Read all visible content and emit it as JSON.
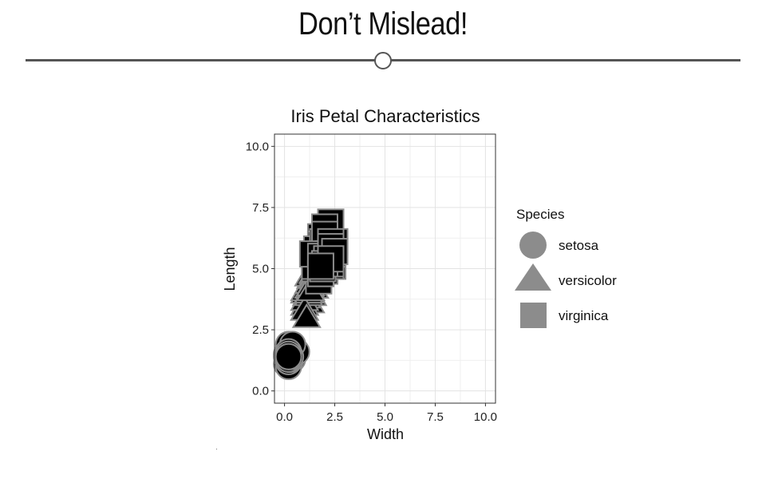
{
  "slide": {
    "title": "Don’t Mislead!"
  },
  "chart_data": {
    "type": "scatter",
    "title": "Iris Petal Characteristics",
    "xlabel": "Width",
    "ylabel": "Length",
    "xlim": [
      -0.5,
      10.5
    ],
    "ylim": [
      -0.5,
      10.5
    ],
    "xticks": [
      0.0,
      2.5,
      5.0,
      7.5,
      10.0
    ],
    "xtick_labels": [
      "0.0",
      "2.5",
      "5.0",
      "7.5",
      "10.0"
    ],
    "yticks": [
      0.0,
      2.5,
      5.0,
      7.5,
      10.0
    ],
    "ytick_labels": [
      "0.0",
      "2.5",
      "5.0",
      "7.5",
      "10.0"
    ],
    "grid": true,
    "legend": {
      "title": "Species",
      "position": "right"
    },
    "series": [
      {
        "name": "setosa",
        "shape": "circle",
        "points": [
          [
            0.2,
            1.4
          ],
          [
            0.2,
            1.4
          ],
          [
            0.2,
            1.3
          ],
          [
            0.2,
            1.5
          ],
          [
            0.2,
            1.4
          ],
          [
            0.4,
            1.7
          ],
          [
            0.3,
            1.4
          ],
          [
            0.2,
            1.5
          ],
          [
            0.2,
            1.4
          ],
          [
            0.1,
            1.5
          ],
          [
            0.2,
            1.5
          ],
          [
            0.2,
            1.6
          ],
          [
            0.1,
            1.4
          ],
          [
            0.1,
            1.1
          ],
          [
            0.2,
            1.2
          ],
          [
            0.4,
            1.5
          ],
          [
            0.4,
            1.3
          ],
          [
            0.3,
            1.4
          ],
          [
            0.3,
            1.7
          ],
          [
            0.3,
            1.5
          ],
          [
            0.2,
            1.7
          ],
          [
            0.4,
            1.5
          ],
          [
            0.2,
            1.0
          ],
          [
            0.5,
            1.7
          ],
          [
            0.2,
            1.9
          ],
          [
            0.2,
            1.6
          ],
          [
            0.4,
            1.6
          ],
          [
            0.2,
            1.5
          ],
          [
            0.2,
            1.4
          ],
          [
            0.2,
            1.6
          ],
          [
            0.2,
            1.6
          ],
          [
            0.4,
            1.5
          ],
          [
            0.1,
            1.5
          ],
          [
            0.2,
            1.4
          ],
          [
            0.2,
            1.5
          ],
          [
            0.2,
            1.2
          ],
          [
            0.2,
            1.3
          ],
          [
            0.1,
            1.4
          ],
          [
            0.2,
            1.3
          ],
          [
            0.2,
            1.5
          ],
          [
            0.3,
            1.3
          ],
          [
            0.3,
            1.3
          ],
          [
            0.2,
            1.3
          ],
          [
            0.6,
            1.6
          ],
          [
            0.4,
            1.9
          ],
          [
            0.3,
            1.4
          ],
          [
            0.2,
            1.6
          ],
          [
            0.2,
            1.4
          ],
          [
            0.2,
            1.5
          ],
          [
            0.2,
            1.4
          ]
        ]
      },
      {
        "name": "versicolor",
        "shape": "triangle",
        "points": [
          [
            1.4,
            4.7
          ],
          [
            1.5,
            4.5
          ],
          [
            1.5,
            4.9
          ],
          [
            1.3,
            4.0
          ],
          [
            1.5,
            4.6
          ],
          [
            1.3,
            4.5
          ],
          [
            1.6,
            4.7
          ],
          [
            1.0,
            3.3
          ],
          [
            1.3,
            4.6
          ],
          [
            1.4,
            3.9
          ],
          [
            1.0,
            3.5
          ],
          [
            1.5,
            4.2
          ],
          [
            1.0,
            4.0
          ],
          [
            1.4,
            4.7
          ],
          [
            1.3,
            3.6
          ],
          [
            1.4,
            4.4
          ],
          [
            1.5,
            4.5
          ],
          [
            1.0,
            4.1
          ],
          [
            1.5,
            4.5
          ],
          [
            1.1,
            3.9
          ],
          [
            1.8,
            4.8
          ],
          [
            1.3,
            4.0
          ],
          [
            1.5,
            4.9
          ],
          [
            1.2,
            4.7
          ],
          [
            1.3,
            4.3
          ],
          [
            1.4,
            4.4
          ],
          [
            1.4,
            4.8
          ],
          [
            1.7,
            5.0
          ],
          [
            1.5,
            4.5
          ],
          [
            1.0,
            3.5
          ],
          [
            1.1,
            3.8
          ],
          [
            1.0,
            3.7
          ],
          [
            1.2,
            3.9
          ],
          [
            1.6,
            5.1
          ],
          [
            1.5,
            4.5
          ],
          [
            1.6,
            4.5
          ],
          [
            1.5,
            4.7
          ],
          [
            1.3,
            4.4
          ],
          [
            1.3,
            4.1
          ],
          [
            1.3,
            4.0
          ],
          [
            1.2,
            4.4
          ],
          [
            1.4,
            4.6
          ],
          [
            1.2,
            4.0
          ],
          [
            1.0,
            3.3
          ],
          [
            1.3,
            4.2
          ],
          [
            1.2,
            4.2
          ],
          [
            1.3,
            4.2
          ],
          [
            1.3,
            4.3
          ],
          [
            1.1,
            3.0
          ],
          [
            1.3,
            4.1
          ]
        ]
      },
      {
        "name": "virginica",
        "shape": "square",
        "points": [
          [
            2.5,
            6.0
          ],
          [
            1.9,
            5.1
          ],
          [
            2.1,
            5.9
          ],
          [
            1.8,
            5.6
          ],
          [
            2.2,
            5.8
          ],
          [
            2.1,
            6.6
          ],
          [
            1.7,
            4.5
          ],
          [
            1.8,
            6.3
          ],
          [
            1.8,
            5.8
          ],
          [
            2.5,
            6.1
          ],
          [
            2.0,
            5.1
          ],
          [
            1.9,
            5.3
          ],
          [
            2.1,
            5.5
          ],
          [
            2.0,
            5.0
          ],
          [
            2.4,
            5.1
          ],
          [
            2.3,
            5.3
          ],
          [
            1.8,
            5.5
          ],
          [
            2.2,
            6.7
          ],
          [
            2.3,
            6.9
          ],
          [
            1.5,
            5.0
          ],
          [
            2.3,
            5.7
          ],
          [
            2.0,
            4.9
          ],
          [
            2.0,
            6.7
          ],
          [
            1.8,
            4.9
          ],
          [
            2.1,
            5.7
          ],
          [
            1.8,
            6.0
          ],
          [
            1.8,
            4.8
          ],
          [
            1.8,
            4.9
          ],
          [
            2.1,
            5.6
          ],
          [
            1.6,
            5.8
          ],
          [
            1.9,
            6.1
          ],
          [
            2.0,
            6.4
          ],
          [
            2.2,
            5.6
          ],
          [
            1.5,
            5.1
          ],
          [
            1.4,
            5.6
          ],
          [
            2.3,
            6.1
          ],
          [
            2.4,
            5.6
          ],
          [
            1.8,
            5.5
          ],
          [
            1.8,
            4.8
          ],
          [
            2.1,
            5.4
          ],
          [
            2.4,
            5.6
          ],
          [
            2.3,
            5.1
          ],
          [
            1.9,
            5.1
          ],
          [
            2.3,
            5.9
          ],
          [
            2.5,
            5.7
          ],
          [
            2.3,
            5.2
          ],
          [
            1.9,
            5.0
          ],
          [
            2.0,
            5.2
          ],
          [
            2.3,
            5.4
          ],
          [
            1.8,
            5.1
          ]
        ]
      }
    ],
    "colors": {
      "marker_fill": "#000000",
      "marker_outline": "#8c8c8c",
      "legend_marker": "#8c8c8c",
      "grid": "#e3e3e3",
      "panel_border": "#333333"
    }
  }
}
